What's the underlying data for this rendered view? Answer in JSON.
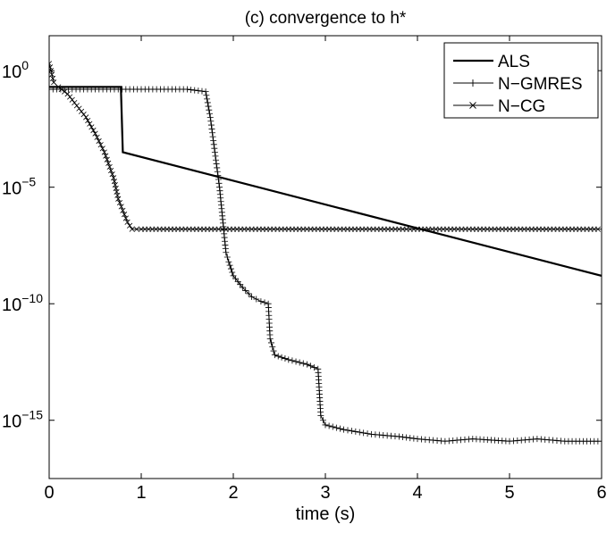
{
  "chart_data": {
    "type": "line",
    "title": "(c) convergence to h*",
    "xlabel": "time (s)",
    "ylabel": "",
    "xlim": [
      0,
      6
    ],
    "ylim_exponent": [
      -17.5,
      1.5
    ],
    "yscale": "log",
    "x_ticks": [
      0,
      1,
      2,
      3,
      4,
      5,
      6
    ],
    "y_ticks": [
      {
        "base": "10",
        "exp": "0",
        "value_exp": 0
      },
      {
        "base": "10",
        "exp": "−5",
        "value_exp": -5
      },
      {
        "base": "10",
        "exp": "−10",
        "value_exp": -10
      },
      {
        "base": "10",
        "exp": "−15",
        "value_exp": -15
      }
    ],
    "grid": false,
    "legend_position": "top-right",
    "series": [
      {
        "name": "ALS",
        "marker": "none",
        "line_width": "thick",
        "x": [
          0,
          0.78,
          0.78,
          0.8,
          6
        ],
        "y_exp": [
          -0.7,
          -0.7,
          -0.8,
          -3.5,
          -8.8
        ]
      },
      {
        "name": "N−GMRES",
        "marker": "plus",
        "line_width": "thin",
        "x": [
          0,
          0.5,
          1.0,
          1.5,
          1.7,
          1.75,
          1.8,
          1.85,
          1.9,
          1.92,
          1.95,
          2.0,
          2.1,
          2.2,
          2.3,
          2.38,
          2.4,
          2.45,
          2.6,
          2.8,
          2.92,
          2.95,
          3.0,
          3.2,
          3.5,
          3.8,
          4.0,
          4.3,
          4.6,
          5.0,
          5.3,
          5.6,
          6.0
        ],
        "y_exp": [
          -0.8,
          -0.8,
          -0.8,
          -0.8,
          -0.9,
          -2.0,
          -3.5,
          -5.0,
          -7.0,
          -7.8,
          -8.2,
          -8.8,
          -9.3,
          -9.7,
          -9.9,
          -10.0,
          -11.5,
          -12.2,
          -12.4,
          -12.6,
          -12.8,
          -14.8,
          -15.2,
          -15.4,
          -15.6,
          -15.7,
          -15.8,
          -15.9,
          -15.8,
          -15.9,
          -15.8,
          -15.9,
          -15.9
        ]
      },
      {
        "name": "N−CG",
        "marker": "x",
        "line_width": "thin",
        "x": [
          0,
          0.02,
          0.05,
          0.1,
          0.2,
          0.3,
          0.4,
          0.5,
          0.6,
          0.7,
          0.75,
          0.8,
          0.85,
          0.9,
          1.0,
          2.0,
          3.0,
          4.0,
          5.0,
          6.0
        ],
        "y_exp": [
          0.3,
          0.0,
          -0.5,
          -0.7,
          -1.0,
          -1.5,
          -2.0,
          -2.7,
          -3.5,
          -4.6,
          -5.5,
          -6.0,
          -6.5,
          -6.8,
          -6.8,
          -6.8,
          -6.8,
          -6.8,
          -6.8,
          -6.8
        ]
      }
    ]
  }
}
